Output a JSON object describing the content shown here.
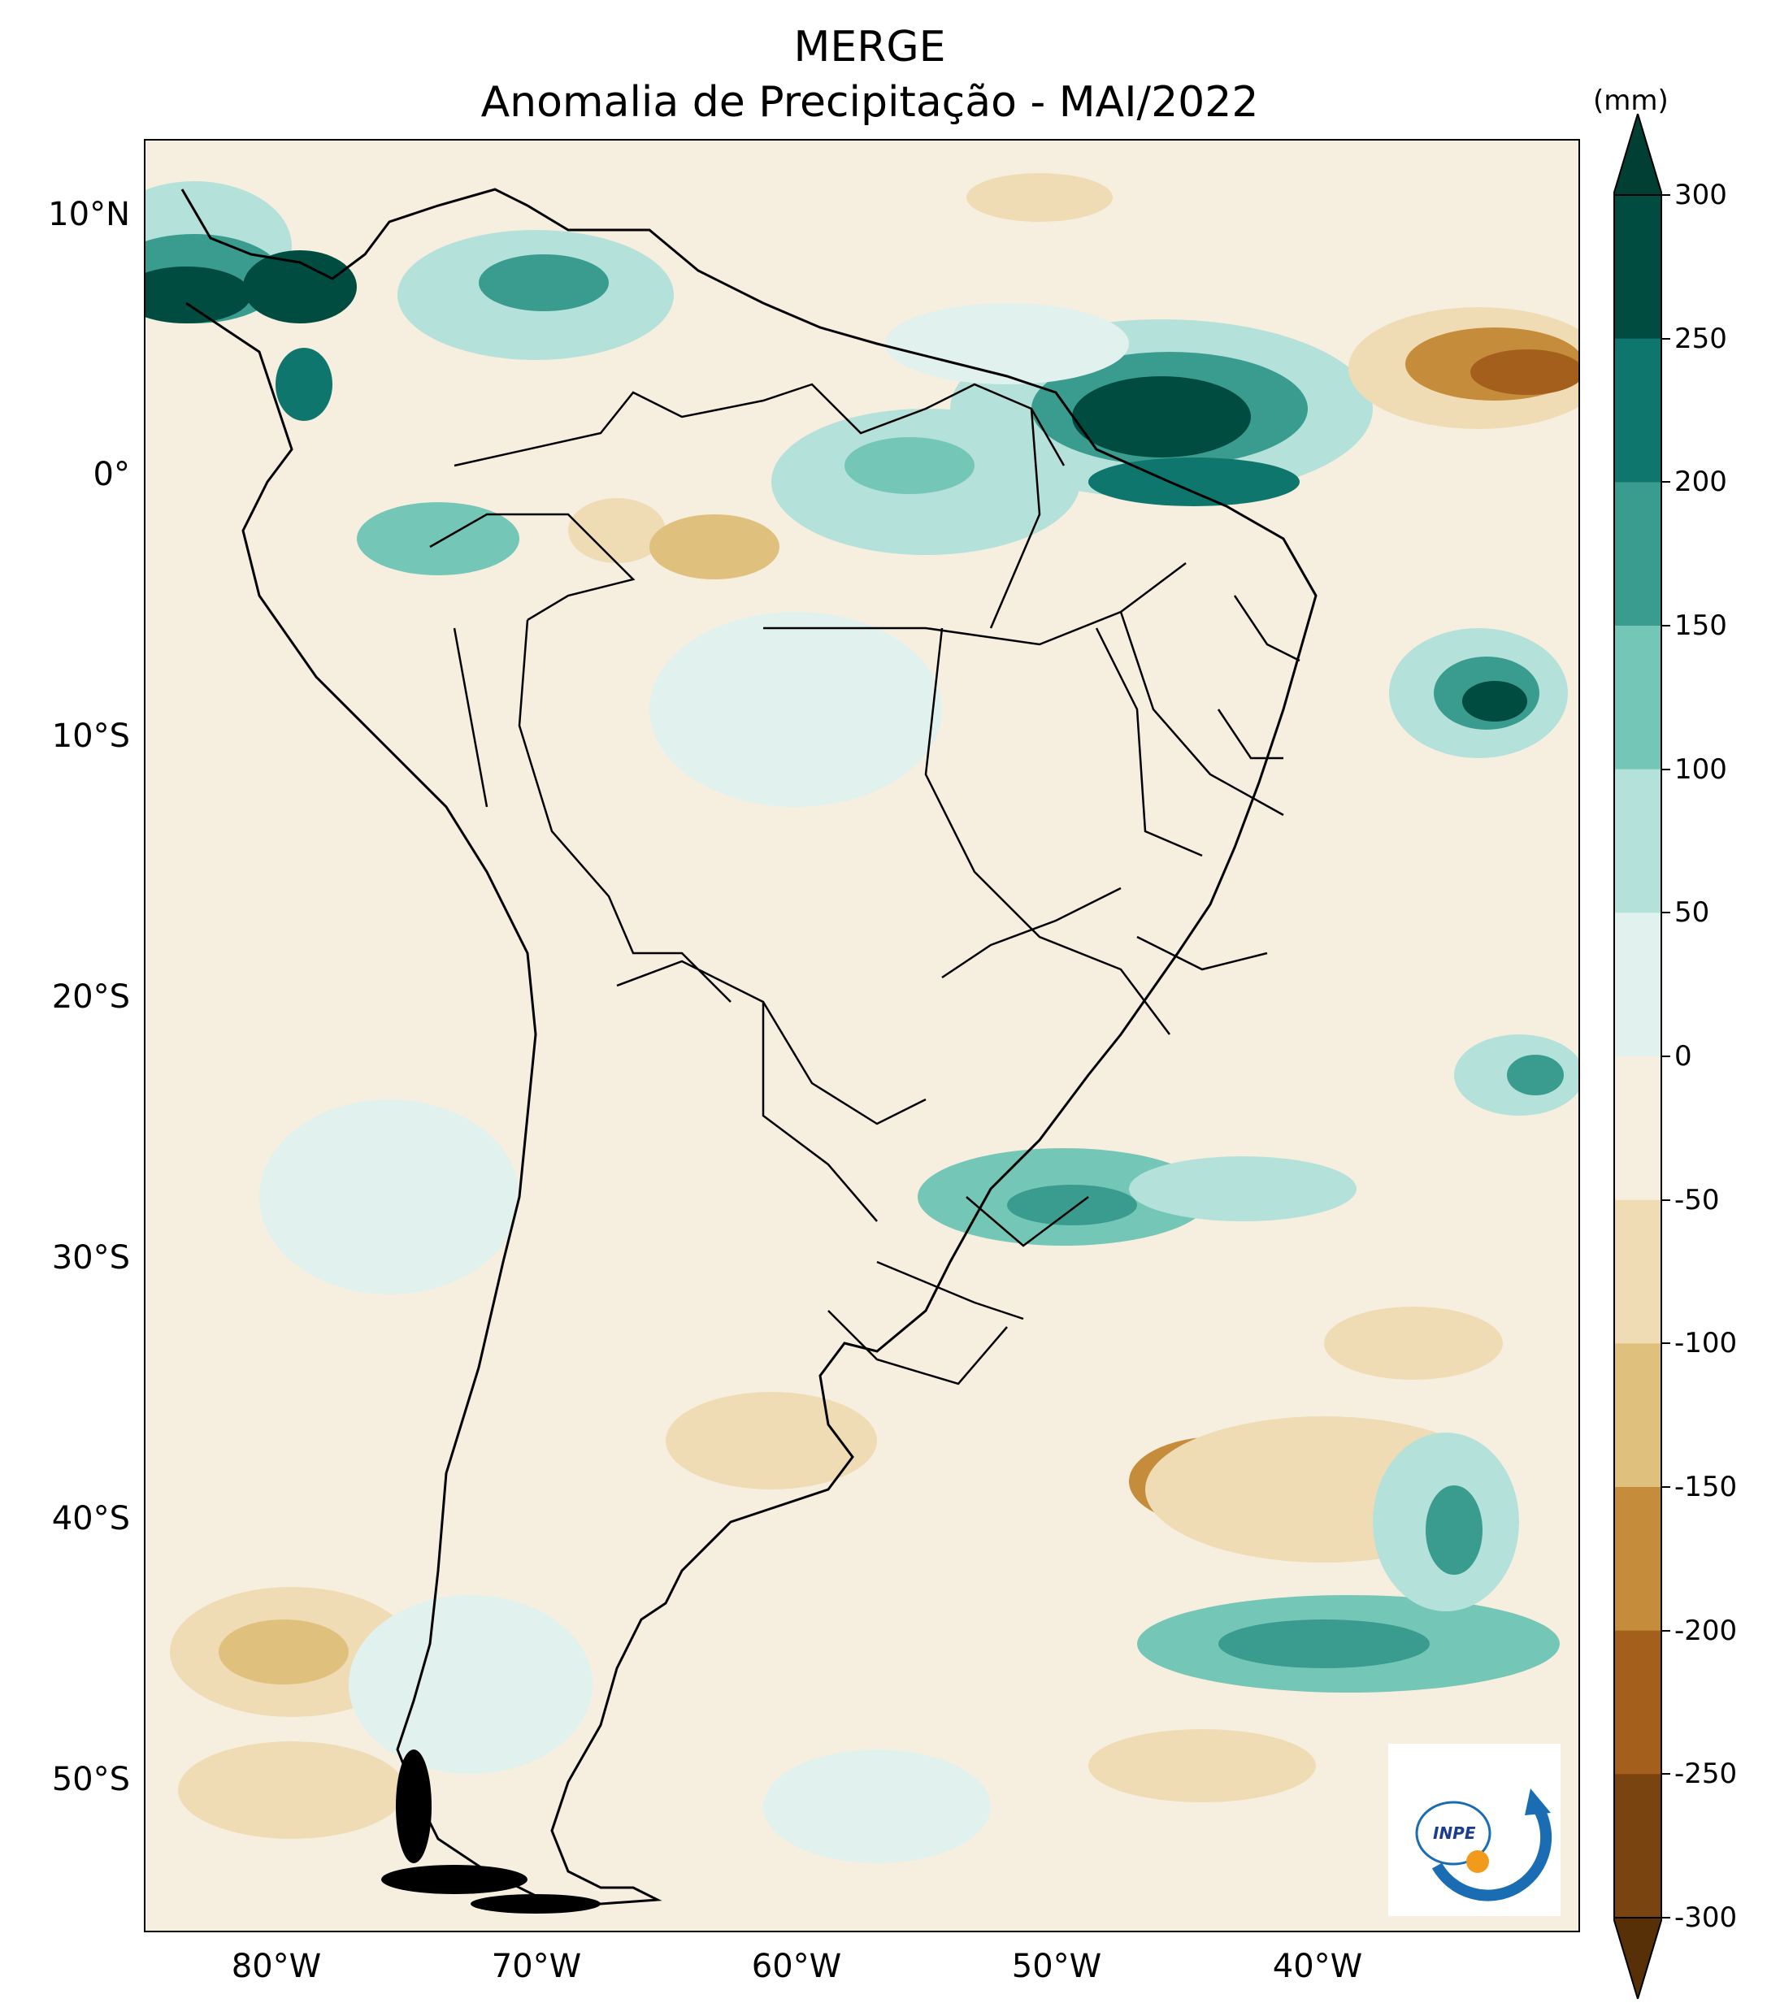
{
  "title": {
    "line1": "MERGE",
    "line2": "Anomalia de Precipitação - MAI/2022"
  },
  "map": {
    "lat_labels": [
      "10°N",
      "0°",
      "10°S",
      "20°S",
      "30°S",
      "40°S",
      "50°S"
    ],
    "lon_labels": [
      "80°W",
      "70°W",
      "60°W",
      "50°W",
      "40°W"
    ],
    "lat_range": [
      -56,
      12.5
    ],
    "lon_range": [
      -85,
      -30
    ]
  },
  "colorbar": {
    "unit": "(mm)",
    "ticks": [
      "300",
      "250",
      "200",
      "150",
      "100",
      "50",
      "0",
      "-50",
      "-100",
      "-150",
      "-200",
      "-250",
      "-300"
    ],
    "colors": [
      "#004c40",
      "#0f766e",
      "#3a9c8f",
      "#74c6b6",
      "#b4e1d9",
      "#e1f1ee",
      "#f6efe0",
      "#efdcb4",
      "#e0c07d",
      "#c58c3c",
      "#a35f1b",
      "#7a4410"
    ],
    "extend_top_color": "#013f35",
    "extend_bottom_color": "#573008"
  },
  "logo": {
    "text": "INPE"
  }
}
